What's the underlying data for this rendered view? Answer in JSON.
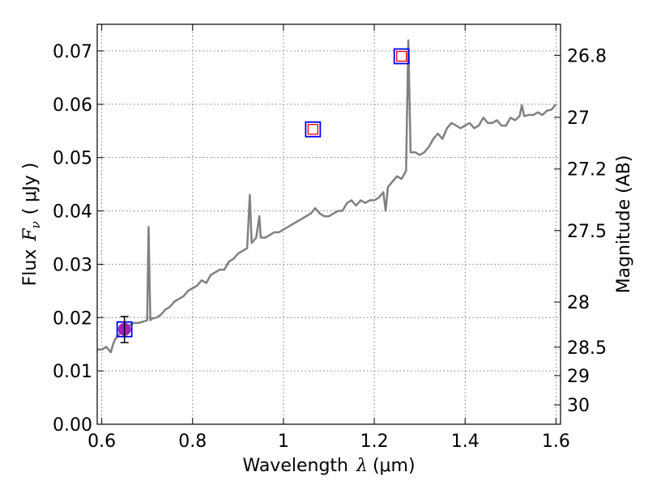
{
  "chart_data": {
    "type": "line",
    "title": "",
    "xlabel": "Wavelength",
    "xlabel_math": "λ",
    "xlabel_unit": "(μm)",
    "ylabel": "Flux",
    "ylabel_math": "F",
    "ylabel_sub": "ν",
    "ylabel_unit": "( μJy )",
    "ylabel_right": "Magnitude (AB)",
    "xlim": [
      0.59,
      1.61
    ],
    "ylim": [
      0.0,
      0.075
    ],
    "grid": true,
    "x_ticks": [
      0.6,
      0.8,
      1.0,
      1.2,
      1.4,
      1.6
    ],
    "x_tick_labels": [
      "0.6",
      "0.8",
      "1",
      "1.2",
      "1.4",
      "1.6"
    ],
    "y_ticks": [
      0.0,
      0.01,
      0.02,
      0.03,
      0.04,
      0.05,
      0.06,
      0.07
    ],
    "y_tick_labels": [
      "0.00",
      "0.01",
      "0.02",
      "0.03",
      "0.04",
      "0.05",
      "0.06",
      "0.07"
    ],
    "right_ticks": [
      26.8,
      27.0,
      27.2,
      27.5,
      28.0,
      28.5,
      29.0,
      30.0
    ],
    "right_tick_labels": [
      "26.8",
      "27",
      "27.2",
      "27.5",
      "28",
      "28.5",
      "29",
      "30"
    ],
    "series": [
      {
        "color": "#808080",
        "x": [
          0.59,
          0.6,
          0.61,
          0.62,
          0.625,
          0.63,
          0.64,
          0.65,
          0.66,
          0.67,
          0.68,
          0.69,
          0.7,
          0.703,
          0.707,
          0.71,
          0.72,
          0.73,
          0.74,
          0.75,
          0.76,
          0.77,
          0.78,
          0.79,
          0.8,
          0.81,
          0.82,
          0.83,
          0.84,
          0.85,
          0.86,
          0.87,
          0.88,
          0.89,
          0.9,
          0.91,
          0.92,
          0.926,
          0.93,
          0.94,
          0.947,
          0.95,
          0.96,
          0.97,
          0.98,
          0.99,
          1.0,
          1.01,
          1.02,
          1.03,
          1.04,
          1.05,
          1.06,
          1.07,
          1.08,
          1.09,
          1.1,
          1.11,
          1.12,
          1.13,
          1.14,
          1.15,
          1.16,
          1.17,
          1.18,
          1.19,
          1.2,
          1.21,
          1.22,
          1.225,
          1.23,
          1.24,
          1.25,
          1.26,
          1.27,
          1.275,
          1.28,
          1.29,
          1.3,
          1.31,
          1.32,
          1.33,
          1.34,
          1.35,
          1.36,
          1.37,
          1.38,
          1.39,
          1.4,
          1.41,
          1.42,
          1.43,
          1.44,
          1.45,
          1.46,
          1.47,
          1.48,
          1.49,
          1.5,
          1.51,
          1.52,
          1.525,
          1.53,
          1.54,
          1.55,
          1.56,
          1.57,
          1.58,
          1.59,
          1.6
        ],
        "values": [
          0.014,
          0.014,
          0.0145,
          0.0135,
          0.015,
          0.016,
          0.017,
          0.018,
          0.0185,
          0.019,
          0.019,
          0.0192,
          0.0195,
          0.037,
          0.0195,
          0.0198,
          0.02,
          0.0205,
          0.0215,
          0.022,
          0.023,
          0.0235,
          0.024,
          0.025,
          0.0255,
          0.026,
          0.027,
          0.0265,
          0.028,
          0.0285,
          0.029,
          0.029,
          0.0305,
          0.031,
          0.032,
          0.0325,
          0.033,
          0.043,
          0.034,
          0.035,
          0.039,
          0.035,
          0.035,
          0.0355,
          0.036,
          0.036,
          0.0365,
          0.037,
          0.0375,
          0.038,
          0.0385,
          0.039,
          0.0395,
          0.0405,
          0.0395,
          0.039,
          0.039,
          0.0395,
          0.04,
          0.04,
          0.0415,
          0.042,
          0.041,
          0.042,
          0.0415,
          0.042,
          0.042,
          0.0425,
          0.0435,
          0.04,
          0.0445,
          0.0455,
          0.0465,
          0.046,
          0.0475,
          0.072,
          0.051,
          0.051,
          0.0505,
          0.051,
          0.052,
          0.0535,
          0.0545,
          0.0535,
          0.0555,
          0.0565,
          0.056,
          0.0555,
          0.056,
          0.0565,
          0.0555,
          0.056,
          0.0575,
          0.0565,
          0.0565,
          0.057,
          0.056,
          0.056,
          0.0575,
          0.057,
          0.0578,
          0.0598,
          0.0578,
          0.058,
          0.058,
          0.0585,
          0.058,
          0.0588,
          0.059,
          0.06
        ]
      }
    ],
    "markers": [
      {
        "kind": "circle",
        "x": 0.65,
        "y": 0.0178,
        "fill": "#a020c0"
      },
      {
        "kind": "square",
        "x": 0.65,
        "y": 0.0178,
        "stroke": "#0000ff"
      },
      {
        "kind": "errorbar",
        "x": 0.65,
        "y": 0.0178,
        "ylow": 0.0153,
        "yhigh": 0.0202,
        "stroke": "#000000"
      },
      {
        "kind": "square",
        "x": 1.065,
        "y": 0.0553,
        "stroke": "#0000ff"
      },
      {
        "kind": "inner-square",
        "x": 1.065,
        "y": 0.0553,
        "stroke": "#ff0000"
      },
      {
        "kind": "square",
        "x": 1.26,
        "y": 0.069,
        "stroke": "#0000ff"
      },
      {
        "kind": "inner-square",
        "x": 1.26,
        "y": 0.069,
        "stroke": "#ff0000"
      }
    ]
  }
}
